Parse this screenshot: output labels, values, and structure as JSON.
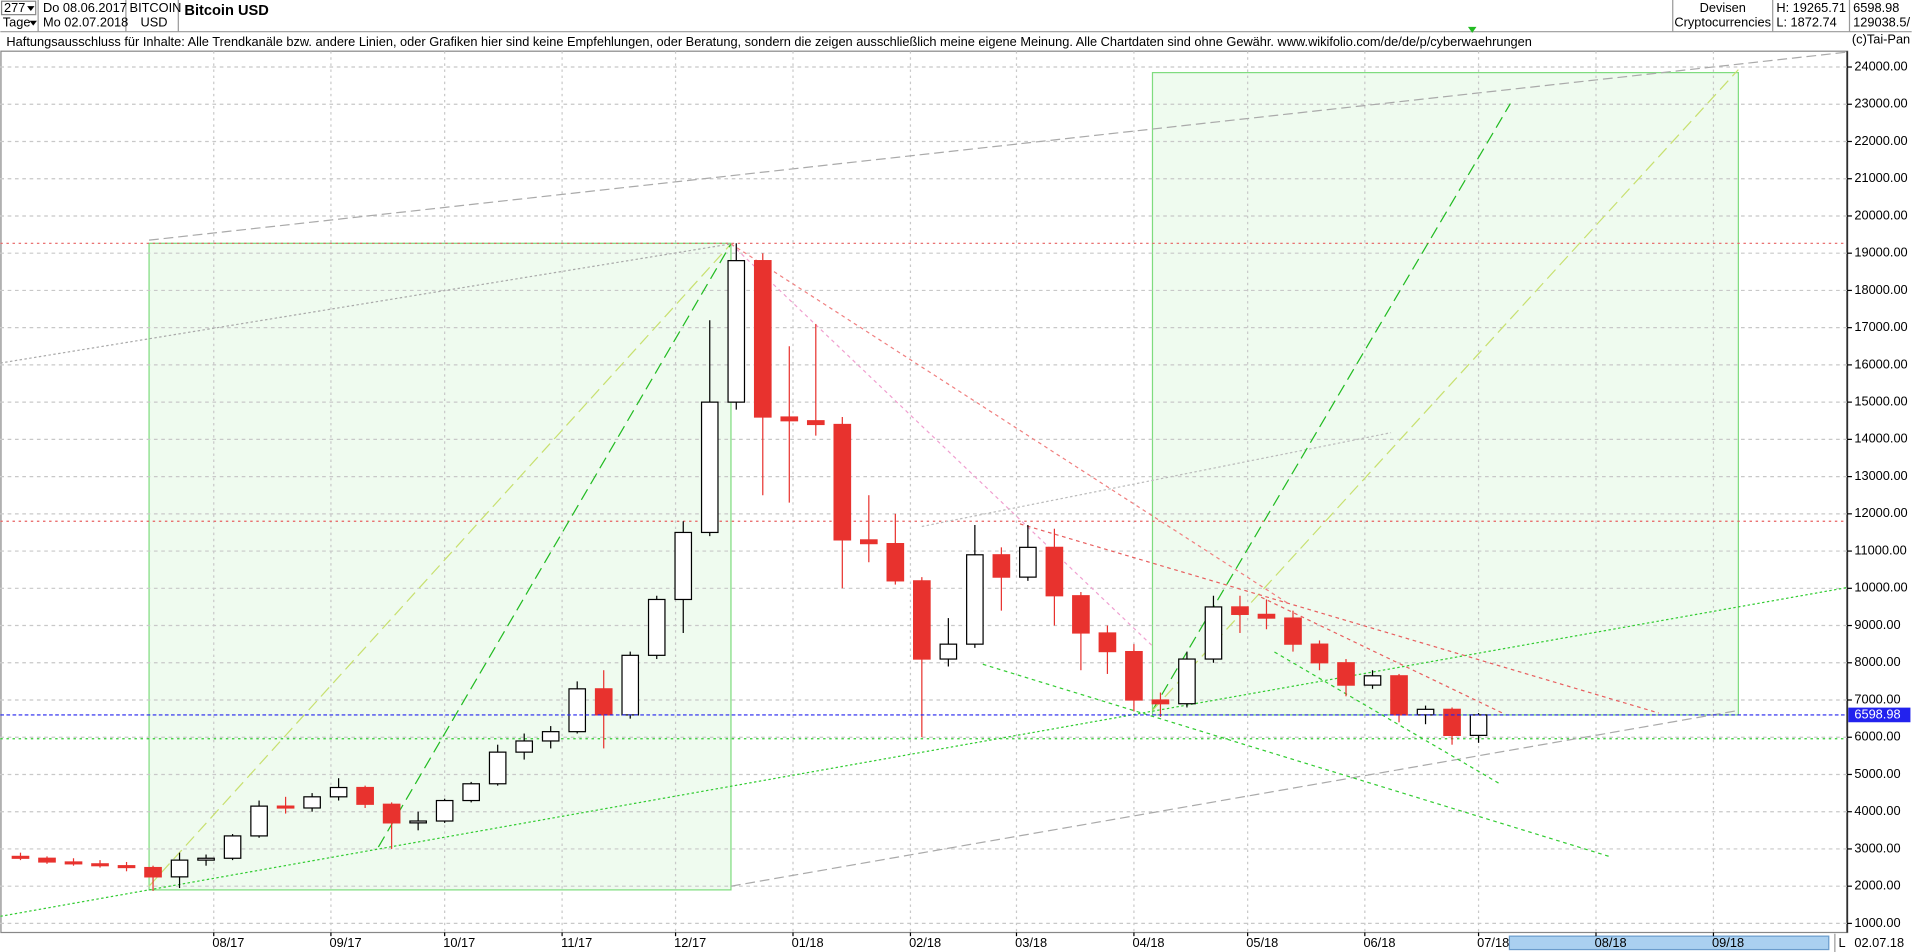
{
  "header": {
    "count": "277",
    "from": "Do 08.06.2017",
    "period": "Tage",
    "to": "Mo 02.07.2018",
    "symbol": "BITCOIN",
    "currency": "USD",
    "group": "Devisen",
    "sector": "Cryptocurrencies",
    "high": "H: 19265.71",
    "low": "L: 1872.74",
    "volume": "129038.5/",
    "disclaimer": "Haftungsausschluss für Inhalte: Alle Trendkanäle bzw. andere Linien, oder Grafiken hier sind keine Empfehlungen, oder Beratung, sondern die zeigen ausschließlich meine eigene Meinung. Alle Chartdaten sind ohne Gewähr.  www.wikifolio.com/de/de/p/cyberwaehrungen",
    "copyright": "(c)Tai-Pan",
    "scroll_mode": "L",
    "end_date": "02.07.18"
  },
  "chart_data": {
    "type": "candlestick",
    "title": "Bitcoin USD",
    "open": [
      2800,
      2750,
      2650,
      2600,
      2550,
      2500,
      2250,
      2700,
      2750,
      3350,
      4150,
      4100,
      4400,
      4650,
      4200,
      3700,
      3750,
      4300,
      4750,
      5600,
      5900,
      6150,
      7300,
      6600,
      8200,
      9700,
      11500,
      15000,
      18800,
      14600,
      14500,
      14400,
      11300,
      11200,
      10200,
      8100,
      8500,
      10900,
      10300,
      11100,
      9800,
      8800,
      8300,
      7000,
      6900,
      8100,
      9500,
      9300,
      9200,
      8500,
      8000,
      7400,
      7650,
      6600,
      6750,
      6050
    ],
    "high": [
      2900,
      2800,
      2750,
      2700,
      2650,
      2550,
      2900,
      2850,
      3400,
      4300,
      4400,
      4500,
      4900,
      4700,
      4250,
      4000,
      4350,
      4800,
      5800,
      6100,
      6300,
      7500,
      7800,
      8300,
      9800,
      11800,
      17200,
      19265.71,
      19000,
      16500,
      17100,
      14600,
      12500,
      12000,
      10300,
      9200,
      11700,
      11100,
      11700,
      11600,
      9900,
      9000,
      8500,
      7200,
      8300,
      9800,
      9800,
      9700,
      9400,
      8600,
      8100,
      7800,
      7700,
      6850,
      6800,
      6650
    ],
    "low": [
      2700,
      2600,
      2550,
      2500,
      2400,
      1872.74,
      1950,
      2550,
      2700,
      3300,
      3950,
      4000,
      4300,
      4100,
      3000,
      3500,
      3700,
      4250,
      4700,
      5400,
      5700,
      6100,
      5700,
      6500,
      8100,
      8800,
      11400,
      14800,
      12500,
      12300,
      14100,
      10000,
      10700,
      10100,
      6000,
      7900,
      8400,
      9400,
      10200,
      9000,
      7800,
      7700,
      6700,
      6550,
      6800,
      8000,
      8800,
      8900,
      8300,
      7800,
      7100,
      7300,
      6400,
      6350,
      5800,
      5850
    ],
    "close": [
      2750,
      2650,
      2600,
      2550,
      2500,
      2250,
      2700,
      2750,
      3350,
      4150,
      4100,
      4400,
      4650,
      4200,
      3700,
      3750,
      4300,
      4750,
      5600,
      5900,
      6150,
      7300,
      6600,
      8200,
      9700,
      11500,
      15000,
      18800,
      14600,
      14500,
      14400,
      11300,
      11200,
      10200,
      8100,
      8500,
      10900,
      10300,
      11100,
      9800,
      8800,
      8300,
      7000,
      6900,
      8100,
      9500,
      9300,
      9200,
      8500,
      8000,
      7400,
      7650,
      6600,
      6750,
      6050,
      6598.98
    ],
    "up_color": "#ffffff",
    "down_color": "#e8322e",
    "outline": "#000000",
    "last_color": "#2222ee",
    "xlim": [
      -0.76,
      68.9
    ],
    "xticks": [
      {
        "value": 7.29,
        "label": "08/17"
      },
      {
        "value": 11.71,
        "label": "09/17"
      },
      {
        "value": 16,
        "label": "10/17"
      },
      {
        "value": 20.43,
        "label": "11/17"
      },
      {
        "value": 24.71,
        "label": "12/17"
      },
      {
        "value": 29.14,
        "label": "01/18"
      },
      {
        "value": 33.57,
        "label": "02/18"
      },
      {
        "value": 37.57,
        "label": "03/18"
      },
      {
        "value": 42,
        "label": "04/18"
      },
      {
        "value": 46.29,
        "label": "05/18"
      },
      {
        "value": 50.71,
        "label": "06/18"
      },
      {
        "value": 55,
        "label": "07/18"
      },
      {
        "value": 59.43,
        "label": "08/18"
      },
      {
        "value": 63.86,
        "label": "09/18"
      }
    ],
    "ylim": [
      756,
      24425
    ],
    "yticks": [
      {
        "value": 1000,
        "label": "1000.00"
      },
      {
        "value": 2000,
        "label": "2000.00"
      },
      {
        "value": 3000,
        "label": "3000.00"
      },
      {
        "value": 4000,
        "label": "4000.00"
      },
      {
        "value": 5000,
        "label": "5000.00"
      },
      {
        "value": 6000,
        "label": "6000.00"
      },
      {
        "value": 7000,
        "label": "7000.00"
      },
      {
        "value": 8000,
        "label": "8000.00"
      },
      {
        "value": 9000,
        "label": "9000.00"
      },
      {
        "value": 10000,
        "label": "10000.00"
      },
      {
        "value": 11000,
        "label": "11000.00"
      },
      {
        "value": 12000,
        "label": "12000.00"
      },
      {
        "value": 13000,
        "label": "13000.00"
      },
      {
        "value": 14000,
        "label": "14000.00"
      },
      {
        "value": 15000,
        "label": "15000.00"
      },
      {
        "value": 16000,
        "label": "16000.00"
      },
      {
        "value": 17000,
        "label": "17000.00"
      },
      {
        "value": 18000,
        "label": "18000.00"
      },
      {
        "value": 19000,
        "label": "19000.00"
      },
      {
        "value": 20000,
        "label": "20000.00"
      },
      {
        "value": 21000,
        "label": "21000.00"
      },
      {
        "value": 22000,
        "label": "22000.00"
      },
      {
        "value": 23000,
        "label": "23000.00"
      },
      {
        "value": 24000,
        "label": "24000.00"
      }
    ],
    "grid": true,
    "zones": [
      {
        "x": [
          4.85,
          26.8
        ],
        "y": [
          1900,
          19265.71
        ],
        "color": "#7fdc7f"
      },
      {
        "x": [
          42.7,
          64.8
        ],
        "y": [
          6598.98,
          23850
        ],
        "color": "#7fdc7f"
      }
    ],
    "levels": [
      {
        "value": 19265.71,
        "color": "#e86060",
        "dash": "2,3"
      },
      {
        "value": 11800,
        "color": "#e86060",
        "dash": "2,3"
      },
      {
        "value": 5960,
        "color": "#33cc33",
        "dash": "2,3"
      }
    ],
    "trendlines": [
      {
        "from": [
          4.85,
          19350
        ],
        "to": [
          68.9,
          24400
        ],
        "color": "#aaaaaa",
        "dash": "8,4"
      },
      {
        "from": [
          -0.76,
          16050
        ],
        "to": [
          26.8,
          19250
        ],
        "color": "#aaaaaa",
        "dash": "2,2"
      },
      {
        "from": [
          34.0,
          11660
        ],
        "to": [
          51.7,
          14180
        ],
        "color": "#bbbbbb",
        "dash": "2,2"
      },
      {
        "from": [
          26.8,
          2000
        ],
        "to": [
          64.8,
          6720
        ],
        "color": "#aaaaaa",
        "dash": "8,4"
      },
      {
        "from": [
          -0.76,
          1190
        ],
        "to": [
          68.9,
          10020
        ],
        "color": "#33cc33",
        "dash": "2,2"
      },
      {
        "from": [
          36.3,
          7960
        ],
        "to": [
          59.97,
          2790
        ],
        "color": "#33cc33",
        "dash": "3,3"
      },
      {
        "from": [
          47.3,
          8290
        ],
        "to": [
          55.8,
          4750
        ],
        "color": "#33cc33",
        "dash": "3,3"
      },
      {
        "from": [
          4.85,
          2000
        ],
        "to": [
          26.8,
          19250
        ],
        "color": "#c8e070",
        "dash": "10,5"
      },
      {
        "from": [
          13.5,
          3050
        ],
        "to": [
          26.8,
          19250
        ],
        "color": "#22bb22",
        "dash": "10,5"
      },
      {
        "from": [
          42.7,
          6720
        ],
        "to": [
          56.2,
          23020
        ],
        "color": "#22bb22",
        "dash": "10,5"
      },
      {
        "from": [
          42.7,
          6720
        ],
        "to": [
          64.8,
          23930
        ],
        "color": "#c8e070",
        "dash": "10,5"
      },
      {
        "from": [
          26.8,
          19250
        ],
        "to": [
          42.7,
          8450
        ],
        "color": "#f0a0d0",
        "dash": "3,3"
      },
      {
        "from": [
          26.8,
          19250
        ],
        "to": [
          47.8,
          9600
        ],
        "color": "#f08080",
        "dash": "3,3"
      },
      {
        "from": [
          37.7,
          11730
        ],
        "to": [
          61.8,
          6650
        ],
        "color": "#e86060",
        "dash": "3,3"
      },
      {
        "from": [
          46.8,
          9760
        ],
        "to": [
          55.9,
          6650
        ],
        "color": "#e86060",
        "dash": "3,3"
      }
    ]
  }
}
